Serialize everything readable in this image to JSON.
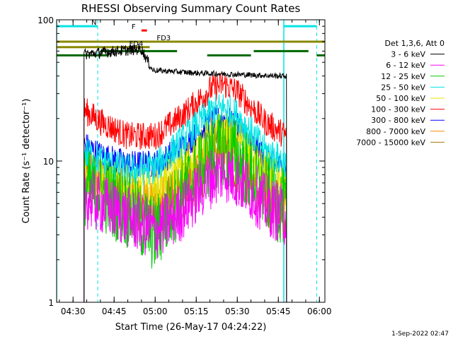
{
  "footer": {
    "timestamp": "1-Sep-2022 02:47"
  },
  "chart_data": {
    "type": "line",
    "title": "RHESSI Observing Summary Count Rates",
    "xlabel": "Start Time (26-May-17 04:24:22)",
    "ylabel": "Count Rate (s⁻¹ detector⁻¹)",
    "y_scale": "log",
    "ylim": [
      1,
      100
    ],
    "xlim": [
      "04:24",
      "06:02"
    ],
    "x_ticks": [
      "04:30",
      "04:45",
      "05:00",
      "05:15",
      "05:30",
      "05:45",
      "06:00"
    ],
    "y_ticks": [
      "1",
      "10",
      "100"
    ],
    "legend_title": "Det 1,3,6, Att 0",
    "legend_placement": "right",
    "data_window": [
      "04:34",
      "05:48"
    ],
    "series": [
      {
        "name": "3 - 6 keV",
        "color": "#000000",
        "x": [
          "04:34",
          "04:38",
          "04:46",
          "04:55",
          "04:59",
          "05:15",
          "05:30",
          "05:45",
          "05:48"
        ],
        "values": [
          57,
          58,
          60,
          62,
          44,
          42,
          41,
          40,
          40
        ]
      },
      {
        "name": "6 - 12 keV",
        "color": "#ff00ff",
        "x": [
          "04:34",
          "04:40",
          "04:50",
          "05:00",
          "05:10",
          "05:20",
          "05:25",
          "05:30",
          "05:40",
          "05:48"
        ],
        "values": [
          5.5,
          5.0,
          4.0,
          3.2,
          4.5,
          7.5,
          8.5,
          7.5,
          5.0,
          4.0
        ]
      },
      {
        "name": "12 - 25 keV",
        "color": "#00cc00",
        "x": [
          "04:34",
          "04:40",
          "04:50",
          "05:00",
          "05:10",
          "05:20",
          "05:25",
          "05:30",
          "05:40",
          "05:48"
        ],
        "values": [
          6.5,
          6.0,
          4.5,
          3.0,
          6.0,
          10.5,
          12.0,
          10.5,
          6.0,
          4.5
        ]
      },
      {
        "name": "25 - 50 keV",
        "color": "#00e5e5",
        "x": [
          "04:34",
          "04:40",
          "04:50",
          "05:00",
          "05:10",
          "05:20",
          "05:25",
          "05:30",
          "05:40",
          "05:48"
        ],
        "values": [
          11.5,
          10.0,
          8.5,
          9.0,
          14.0,
          22.0,
          24.0,
          21.0,
          12.0,
          9.5
        ]
      },
      {
        "name": "50 - 100 keV",
        "color": "#e5e500",
        "x": [
          "04:34",
          "04:40",
          "04:50",
          "05:00",
          "05:10",
          "05:20",
          "05:25",
          "05:30",
          "05:40",
          "05:48"
        ],
        "values": [
          8.0,
          7.5,
          6.5,
          6.2,
          9.0,
          14.5,
          16.0,
          14.0,
          8.5,
          6.5
        ]
      },
      {
        "name": "100 - 300 keV",
        "color": "#ff0000",
        "x": [
          "04:34",
          "04:40",
          "04:50",
          "05:00",
          "05:10",
          "05:20",
          "05:25",
          "05:30",
          "05:40",
          "05:48"
        ],
        "values": [
          23,
          19,
          15,
          15,
          21,
          32,
          35,
          31,
          19,
          15
        ]
      },
      {
        "name": "300 - 800 keV",
        "color": "#0000ff",
        "x": [
          "04:34",
          "04:40",
          "04:50",
          "05:00",
          "05:10",
          "05:20",
          "05:25",
          "05:30",
          "05:40",
          "05:48"
        ],
        "values": [
          13,
          11,
          9.5,
          9.5,
          12.5,
          18.5,
          20,
          17.5,
          10.5,
          8.5
        ]
      },
      {
        "name": "800 - 7000 keV",
        "color": "#ff8800",
        "x": [
          "04:34",
          "04:40",
          "04:50",
          "05:00",
          "05:10",
          "05:20",
          "05:25",
          "05:30",
          "05:40",
          "05:48"
        ],
        "values": [
          9.0,
          8.0,
          6.0,
          5.0,
          7.0,
          12.0,
          13.5,
          11.5,
          6.5,
          5.0
        ]
      },
      {
        "name": "7000 - 15000 keV",
        "color": "#a07a00",
        "x": [
          "04:34",
          "04:40",
          "04:50",
          "05:00",
          "05:10",
          "05:20",
          "05:25",
          "05:30",
          "05:40",
          "05:48"
        ],
        "values": [
          7.0,
          6.5,
          5.0,
          4.2,
          6.0,
          10.0,
          11.5,
          9.5,
          5.5,
          4.2
        ]
      }
    ],
    "annotations": {
      "flag_bars": [
        {
          "label": "N",
          "color": "#00e5e5",
          "x_start": "04:24",
          "x_end": "04:39",
          "y": 90
        },
        {
          "label": "",
          "color": "#00e5e5",
          "x_start": "05:47",
          "x_end": "05:59",
          "y": 90
        },
        {
          "label": "F",
          "color": "#ff0000",
          "x_start": "04:55",
          "x_end": "04:57",
          "y": 84
        },
        {
          "label": "FD3",
          "color": "#888800",
          "x_start": "04:24",
          "x_end": "06:02",
          "y": 70
        },
        {
          "label": "FD4",
          "color": "#888800",
          "x_start": "04:24",
          "x_end": "04:58",
          "y": 64
        },
        {
          "label": "FD6",
          "color": "#006600",
          "x_start": "04:24",
          "x_end": "04:43",
          "y": 56
        },
        {
          "label": "",
          "color": "#006600",
          "x_start": "04:40",
          "x_end": "05:08",
          "y": 60
        },
        {
          "label": "",
          "color": "#006600",
          "x_start": "05:19",
          "x_end": "05:35",
          "y": 56
        },
        {
          "label": "",
          "color": "#006600",
          "x_start": "05:36",
          "x_end": "05:56",
          "y": 60
        },
        {
          "label": "",
          "color": "#006600",
          "x_start": "05:59",
          "x_end": "06:02",
          "y": 56
        }
      ],
      "dashed_vlines": [
        "04:39",
        "05:59"
      ],
      "solid_vlines": [
        "04:24",
        "05:47"
      ]
    }
  }
}
